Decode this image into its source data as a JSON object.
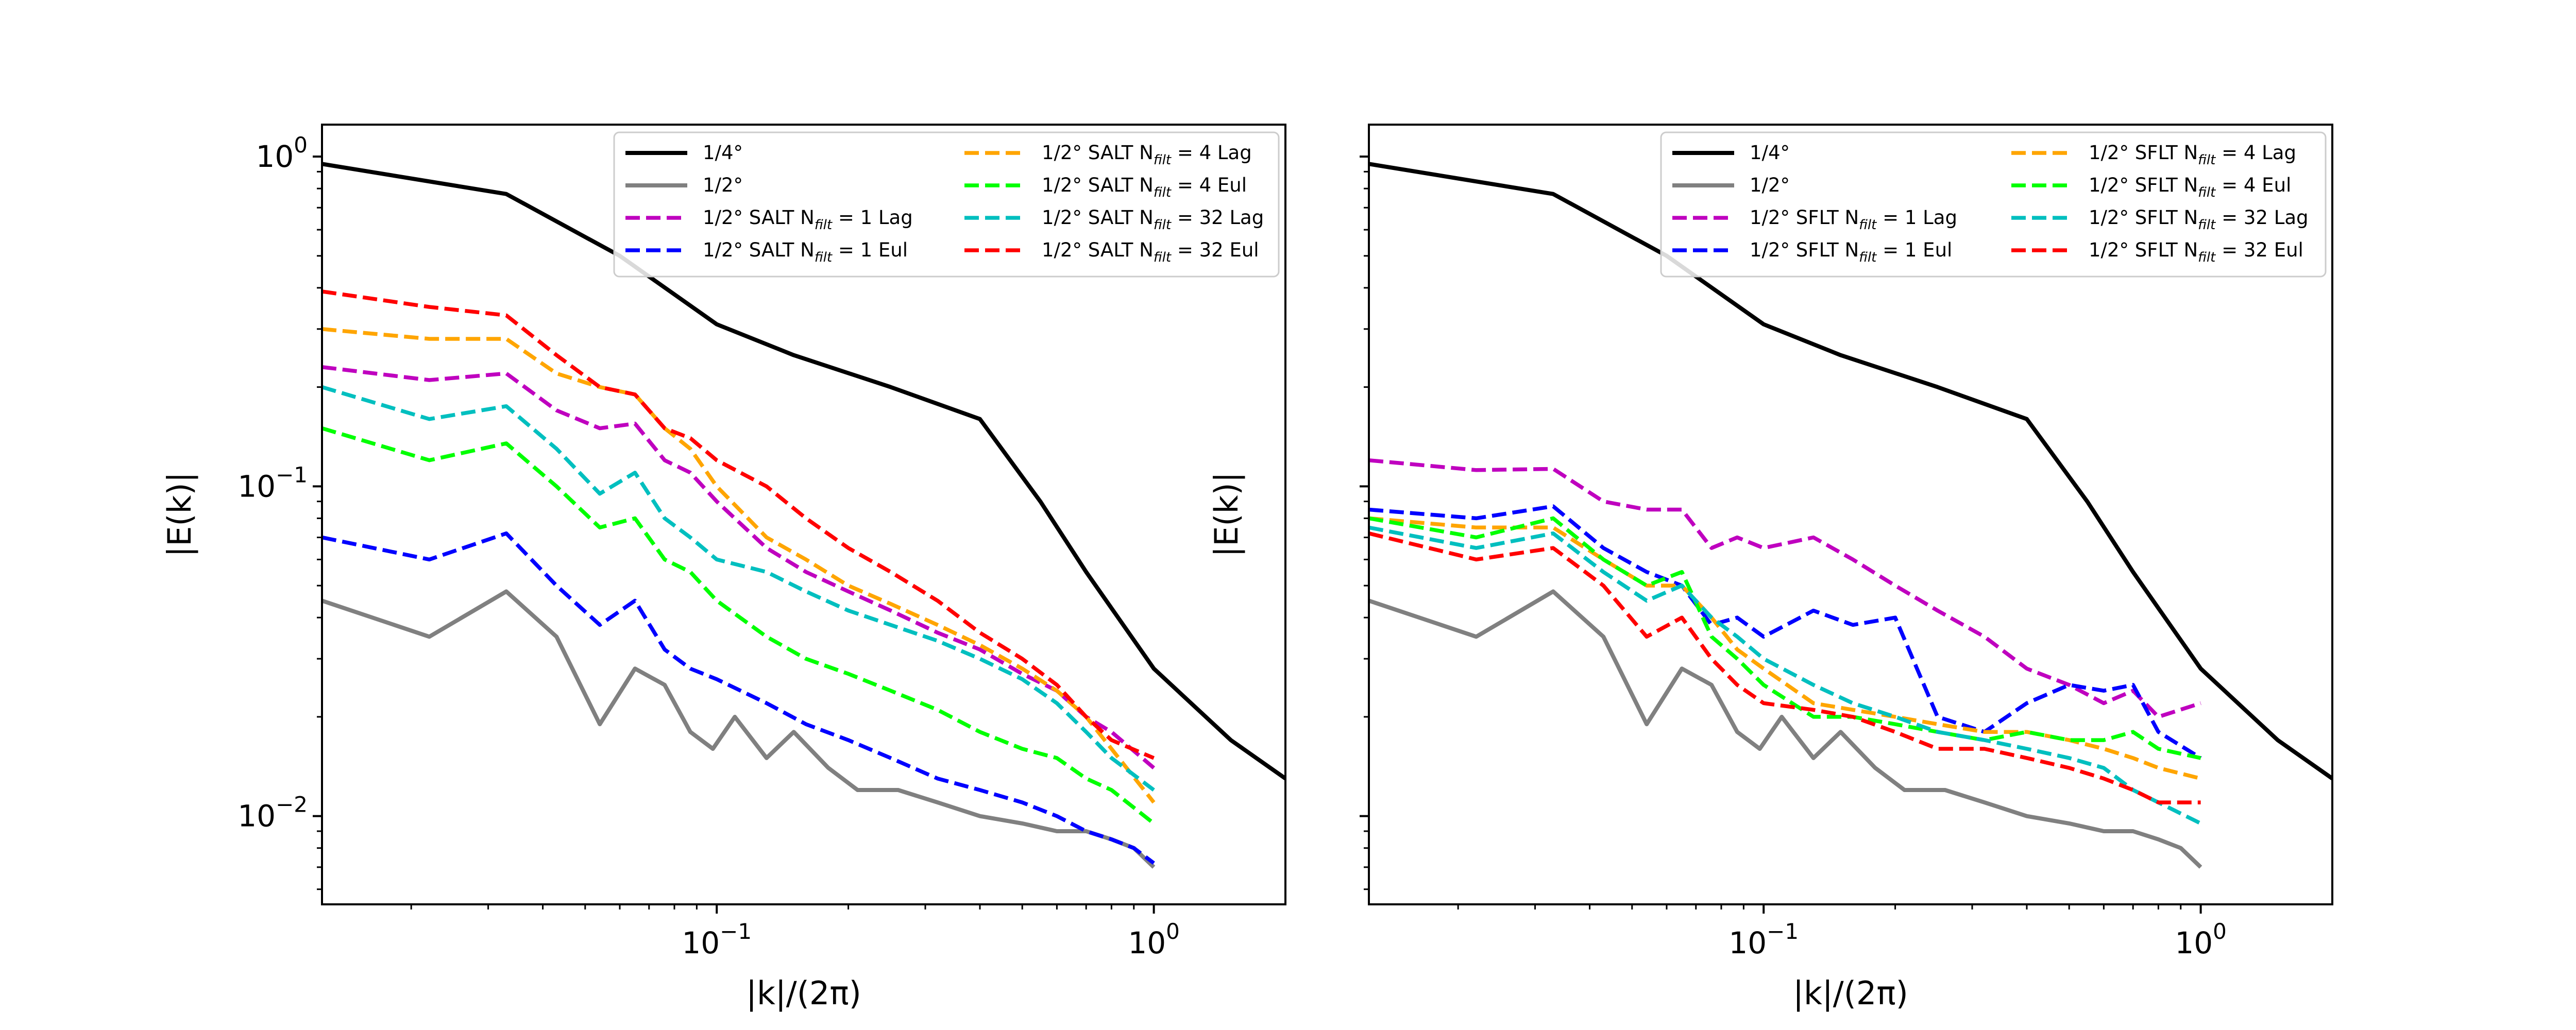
{
  "chart_data": [
    {
      "type": "line",
      "scale": "log-log",
      "title": "",
      "xlabel": "|k|/(2π)",
      "ylabel": "|E(k)|",
      "xlim": [
        0.0125,
        2.0
      ],
      "ylim": [
        0.0054,
        1.25
      ],
      "xticks": [
        {
          "value": 0.1,
          "base": "10",
          "exp": "−1"
        },
        {
          "value": 1.0,
          "base": "10",
          "exp": "0"
        }
      ],
      "yticks": [
        {
          "value": 0.01,
          "base": "10",
          "exp": "−2"
        },
        {
          "value": 0.1,
          "base": "10",
          "exp": "−1"
        },
        {
          "value": 1.0,
          "base": "10",
          "exp": "0"
        }
      ],
      "legend_position": "top-right",
      "series": [
        {
          "name": "1/4°",
          "label": {
            "pre": "1/4°",
            "sub": "",
            "post": ""
          },
          "color": "#000000",
          "style": "solid",
          "x": [
            0.0125,
            0.033,
            0.06,
            0.1,
            0.15,
            0.25,
            0.4,
            0.55,
            0.7,
            1.0,
            1.5,
            2.0
          ],
          "y": [
            0.95,
            0.77,
            0.5,
            0.31,
            0.25,
            0.2,
            0.16,
            0.09,
            0.055,
            0.028,
            0.017,
            0.013
          ]
        },
        {
          "name": "1/2°",
          "label": {
            "pre": "1/2°",
            "sub": "",
            "post": ""
          },
          "color": "#808080",
          "style": "solid",
          "x": [
            0.0125,
            0.022,
            0.033,
            0.043,
            0.054,
            0.065,
            0.076,
            0.087,
            0.098,
            0.11,
            0.13,
            0.15,
            0.18,
            0.21,
            0.26,
            0.32,
            0.4,
            0.5,
            0.6,
            0.7,
            0.8,
            0.9,
            1.0
          ],
          "y": [
            0.045,
            0.035,
            0.048,
            0.035,
            0.019,
            0.028,
            0.025,
            0.018,
            0.016,
            0.02,
            0.015,
            0.018,
            0.014,
            0.012,
            0.012,
            0.011,
            0.01,
            0.0095,
            0.009,
            0.009,
            0.0085,
            0.008,
            0.007
          ]
        },
        {
          "name": "1/2° SALT N_filt = 1 Lag",
          "label": {
            "pre": "1/2° SALT N",
            "sub": "filt",
            "post": " = 1 Lag"
          },
          "color": "#bf00bf",
          "style": "dashed",
          "x": [
            0.0125,
            0.022,
            0.033,
            0.043,
            0.054,
            0.065,
            0.076,
            0.087,
            0.1,
            0.13,
            0.16,
            0.2,
            0.25,
            0.32,
            0.4,
            0.5,
            0.6,
            0.7,
            0.8,
            1.0
          ],
          "y": [
            0.23,
            0.21,
            0.22,
            0.17,
            0.15,
            0.155,
            0.12,
            0.11,
            0.09,
            0.065,
            0.055,
            0.048,
            0.042,
            0.036,
            0.032,
            0.027,
            0.024,
            0.02,
            0.018,
            0.014
          ]
        },
        {
          "name": "1/2° SALT N_filt = 1 Eul",
          "label": {
            "pre": "1/2° SALT N",
            "sub": "filt",
            "post": " = 1 Eul"
          },
          "color": "#0000ff",
          "style": "dashed",
          "x": [
            0.0125,
            0.022,
            0.033,
            0.043,
            0.054,
            0.065,
            0.076,
            0.087,
            0.1,
            0.13,
            0.16,
            0.2,
            0.25,
            0.32,
            0.4,
            0.5,
            0.6,
            0.7,
            0.8,
            0.9,
            1.0
          ],
          "y": [
            0.07,
            0.06,
            0.072,
            0.05,
            0.038,
            0.045,
            0.032,
            0.028,
            0.026,
            0.022,
            0.019,
            0.017,
            0.015,
            0.013,
            0.012,
            0.011,
            0.01,
            0.009,
            0.0085,
            0.008,
            0.0072
          ]
        },
        {
          "name": "1/2° SALT N_filt = 4 Lag",
          "label": {
            "pre": "1/2° SALT N",
            "sub": "filt",
            "post": " = 4 Lag"
          },
          "color": "#ffa500",
          "style": "dashed",
          "x": [
            0.0125,
            0.022,
            0.033,
            0.043,
            0.054,
            0.065,
            0.076,
            0.087,
            0.1,
            0.13,
            0.16,
            0.2,
            0.25,
            0.32,
            0.4,
            0.5,
            0.6,
            0.7,
            0.8,
            1.0
          ],
          "y": [
            0.3,
            0.28,
            0.28,
            0.22,
            0.2,
            0.19,
            0.15,
            0.13,
            0.1,
            0.07,
            0.06,
            0.05,
            0.044,
            0.038,
            0.033,
            0.028,
            0.024,
            0.02,
            0.016,
            0.011
          ]
        },
        {
          "name": "1/2° SALT N_filt = 4 Eul",
          "label": {
            "pre": "1/2° SALT N",
            "sub": "filt",
            "post": " = 4 Eul"
          },
          "color": "#00ff00",
          "style": "dashed",
          "x": [
            0.0125,
            0.022,
            0.033,
            0.043,
            0.054,
            0.065,
            0.076,
            0.087,
            0.1,
            0.13,
            0.16,
            0.2,
            0.25,
            0.32,
            0.4,
            0.5,
            0.6,
            0.7,
            0.8,
            1.0
          ],
          "y": [
            0.15,
            0.12,
            0.135,
            0.1,
            0.075,
            0.08,
            0.06,
            0.055,
            0.045,
            0.035,
            0.03,
            0.027,
            0.024,
            0.021,
            0.018,
            0.016,
            0.015,
            0.013,
            0.012,
            0.0095
          ]
        },
        {
          "name": "1/2° SALT N_filt = 32 Lag",
          "label": {
            "pre": "1/2° SALT N",
            "sub": "filt",
            "post": " = 32 Lag"
          },
          "color": "#00bfbf",
          "style": "dashed",
          "x": [
            0.0125,
            0.022,
            0.033,
            0.043,
            0.054,
            0.065,
            0.076,
            0.087,
            0.1,
            0.13,
            0.16,
            0.2,
            0.25,
            0.32,
            0.4,
            0.5,
            0.6,
            0.7,
            0.8,
            1.0
          ],
          "y": [
            0.2,
            0.16,
            0.175,
            0.13,
            0.095,
            0.11,
            0.08,
            0.07,
            0.06,
            0.055,
            0.048,
            0.042,
            0.038,
            0.034,
            0.03,
            0.026,
            0.022,
            0.018,
            0.015,
            0.012
          ]
        },
        {
          "name": "1/2° SALT N_filt = 32 Eul",
          "label": {
            "pre": "1/2° SALT N",
            "sub": "filt",
            "post": " = 32 Eul"
          },
          "color": "#ff0000",
          "style": "dashed",
          "x": [
            0.0125,
            0.022,
            0.033,
            0.043,
            0.054,
            0.065,
            0.076,
            0.087,
            0.1,
            0.13,
            0.16,
            0.2,
            0.25,
            0.32,
            0.4,
            0.5,
            0.6,
            0.7,
            0.8,
            1.0
          ],
          "y": [
            0.39,
            0.35,
            0.33,
            0.25,
            0.2,
            0.19,
            0.15,
            0.14,
            0.12,
            0.1,
            0.08,
            0.065,
            0.055,
            0.045,
            0.036,
            0.03,
            0.025,
            0.02,
            0.017,
            0.015
          ]
        }
      ]
    },
    {
      "type": "line",
      "scale": "log-log",
      "title": "",
      "xlabel": "|k|/(2π)",
      "ylabel": "|E(k)|",
      "xlim": [
        0.0125,
        2.0
      ],
      "ylim": [
        0.0054,
        1.25
      ],
      "xticks": [
        {
          "value": 0.1,
          "base": "10",
          "exp": "−1"
        },
        {
          "value": 1.0,
          "base": "10",
          "exp": "0"
        }
      ],
      "yticks": [
        {
          "value": 0.01,
          "base": "10",
          "exp": "−2"
        },
        {
          "value": 0.1,
          "base": "10",
          "exp": "−1"
        },
        {
          "value": 1.0,
          "base": "10",
          "exp": "0"
        }
      ],
      "legend_position": "top-right",
      "series": [
        {
          "name": "1/4°",
          "label": {
            "pre": "1/4°",
            "sub": "",
            "post": ""
          },
          "color": "#000000",
          "style": "solid",
          "x": [
            0.0125,
            0.033,
            0.06,
            0.1,
            0.15,
            0.25,
            0.4,
            0.55,
            0.7,
            1.0,
            1.5,
            2.0
          ],
          "y": [
            0.95,
            0.77,
            0.5,
            0.31,
            0.25,
            0.2,
            0.16,
            0.09,
            0.055,
            0.028,
            0.017,
            0.013
          ]
        },
        {
          "name": "1/2°",
          "label": {
            "pre": "1/2°",
            "sub": "",
            "post": ""
          },
          "color": "#808080",
          "style": "solid",
          "x": [
            0.0125,
            0.022,
            0.033,
            0.043,
            0.054,
            0.065,
            0.076,
            0.087,
            0.098,
            0.11,
            0.13,
            0.15,
            0.18,
            0.21,
            0.26,
            0.32,
            0.4,
            0.5,
            0.6,
            0.7,
            0.8,
            0.9,
            1.0
          ],
          "y": [
            0.045,
            0.035,
            0.048,
            0.035,
            0.019,
            0.028,
            0.025,
            0.018,
            0.016,
            0.02,
            0.015,
            0.018,
            0.014,
            0.012,
            0.012,
            0.011,
            0.01,
            0.0095,
            0.009,
            0.009,
            0.0085,
            0.008,
            0.007
          ]
        },
        {
          "name": "1/2° SFLT N_filt = 1 Lag",
          "label": {
            "pre": "1/2° SFLT N",
            "sub": "filt",
            "post": " = 1 Lag"
          },
          "color": "#bf00bf",
          "style": "dashed",
          "x": [
            0.0125,
            0.022,
            0.033,
            0.043,
            0.054,
            0.065,
            0.076,
            0.087,
            0.1,
            0.13,
            0.16,
            0.2,
            0.25,
            0.32,
            0.4,
            0.5,
            0.6,
            0.7,
            0.8,
            1.0
          ],
          "y": [
            0.12,
            0.112,
            0.113,
            0.09,
            0.085,
            0.085,
            0.065,
            0.07,
            0.065,
            0.07,
            0.06,
            0.05,
            0.042,
            0.035,
            0.028,
            0.025,
            0.022,
            0.024,
            0.02,
            0.022
          ]
        },
        {
          "name": "1/2° SFLT N_filt = 1 Eul",
          "label": {
            "pre": "1/2° SFLT N",
            "sub": "filt",
            "post": " = 1 Eul"
          },
          "color": "#0000ff",
          "style": "dashed",
          "x": [
            0.0125,
            0.022,
            0.033,
            0.043,
            0.054,
            0.065,
            0.076,
            0.087,
            0.1,
            0.13,
            0.16,
            0.2,
            0.25,
            0.32,
            0.4,
            0.5,
            0.6,
            0.7,
            0.8,
            1.0
          ],
          "y": [
            0.085,
            0.08,
            0.087,
            0.065,
            0.055,
            0.05,
            0.038,
            0.04,
            0.035,
            0.042,
            0.038,
            0.04,
            0.02,
            0.018,
            0.022,
            0.025,
            0.024,
            0.025,
            0.018,
            0.015
          ]
        },
        {
          "name": "1/2° SFLT N_filt = 4 Lag",
          "label": {
            "pre": "1/2° SFLT N",
            "sub": "filt",
            "post": " = 4 Lag"
          },
          "color": "#ffa500",
          "style": "dashed",
          "x": [
            0.0125,
            0.022,
            0.033,
            0.043,
            0.054,
            0.065,
            0.076,
            0.087,
            0.1,
            0.13,
            0.16,
            0.2,
            0.25,
            0.32,
            0.4,
            0.5,
            0.6,
            0.7,
            0.8,
            1.0
          ],
          "y": [
            0.08,
            0.075,
            0.075,
            0.06,
            0.05,
            0.05,
            0.04,
            0.032,
            0.028,
            0.022,
            0.021,
            0.02,
            0.019,
            0.018,
            0.018,
            0.017,
            0.016,
            0.015,
            0.014,
            0.013
          ]
        },
        {
          "name": "1/2° SFLT N_filt = 4 Eul",
          "label": {
            "pre": "1/2° SFLT N",
            "sub": "filt",
            "post": " = 4 Eul"
          },
          "color": "#00ff00",
          "style": "dashed",
          "x": [
            0.0125,
            0.022,
            0.033,
            0.043,
            0.054,
            0.065,
            0.076,
            0.087,
            0.1,
            0.13,
            0.16,
            0.2,
            0.25,
            0.32,
            0.4,
            0.5,
            0.6,
            0.7,
            0.8,
            1.0
          ],
          "y": [
            0.08,
            0.07,
            0.08,
            0.06,
            0.05,
            0.055,
            0.035,
            0.03,
            0.025,
            0.02,
            0.02,
            0.019,
            0.018,
            0.017,
            0.018,
            0.017,
            0.017,
            0.018,
            0.016,
            0.015
          ]
        },
        {
          "name": "1/2° SFLT N_filt = 32 Lag",
          "label": {
            "pre": "1/2° SFLT N",
            "sub": "filt",
            "post": " = 32 Lag"
          },
          "color": "#00bfbf",
          "style": "dashed",
          "x": [
            0.0125,
            0.022,
            0.033,
            0.043,
            0.054,
            0.065,
            0.076,
            0.087,
            0.1,
            0.13,
            0.16,
            0.2,
            0.25,
            0.32,
            0.4,
            0.5,
            0.6,
            0.7,
            0.8,
            1.0
          ],
          "y": [
            0.075,
            0.065,
            0.072,
            0.055,
            0.045,
            0.05,
            0.04,
            0.035,
            0.03,
            0.025,
            0.022,
            0.02,
            0.018,
            0.017,
            0.016,
            0.015,
            0.014,
            0.012,
            0.011,
            0.0095
          ]
        },
        {
          "name": "1/2° SFLT N_filt = 32 Eul",
          "label": {
            "pre": "1/2° SFLT N",
            "sub": "filt",
            "post": " = 32 Eul"
          },
          "color": "#ff0000",
          "style": "dashed",
          "x": [
            0.0125,
            0.022,
            0.033,
            0.043,
            0.054,
            0.065,
            0.076,
            0.087,
            0.1,
            0.13,
            0.16,
            0.2,
            0.25,
            0.32,
            0.4,
            0.5,
            0.6,
            0.7,
            0.8,
            1.0
          ],
          "y": [
            0.072,
            0.06,
            0.065,
            0.05,
            0.035,
            0.04,
            0.03,
            0.025,
            0.022,
            0.021,
            0.02,
            0.018,
            0.016,
            0.016,
            0.015,
            0.014,
            0.013,
            0.012,
            0.011,
            0.011
          ]
        }
      ]
    }
  ]
}
